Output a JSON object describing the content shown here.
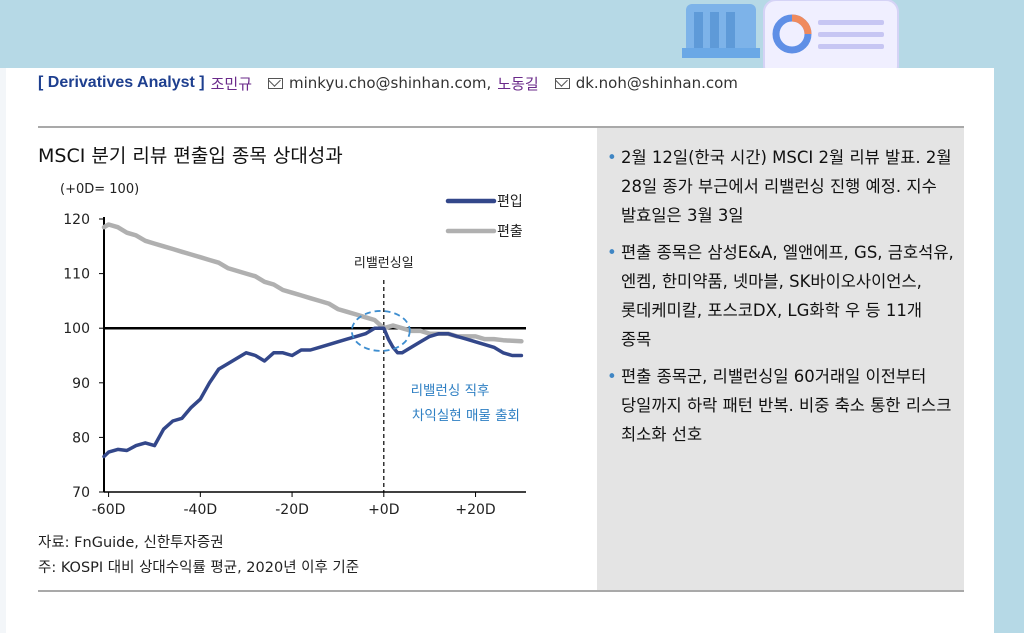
{
  "header": {
    "role": "[ Derivatives Analyst ]",
    "analysts": [
      {
        "name": "조민규",
        "email": "minkyu.cho@shinhan.com,"
      },
      {
        "name": "노동길",
        "email": "dk.noh@shinhan.com"
      }
    ]
  },
  "chart_title": "MSCI 분기 리뷰 편출입 종목 상대성과",
  "chart_data": {
    "type": "line",
    "title": "MSCI 분기 리뷰 편출입 종목 상대성과",
    "unit_label": "(+0D= 100)",
    "x_ticks": [
      "-60D",
      "-40D",
      "-20D",
      "+0D",
      "+20D"
    ],
    "x_tick_values": [
      -60,
      -40,
      -20,
      0,
      20
    ],
    "xlim": [
      -61,
      31
    ],
    "y_ticks": [
      70,
      80,
      90,
      100,
      110,
      120
    ],
    "ylim": [
      70,
      120
    ],
    "legend_position": "top-right",
    "series": [
      {
        "name": "편입",
        "color": "#33478a",
        "x": [
          -61,
          -60,
          -58,
          -56,
          -54,
          -52,
          -50,
          -48,
          -46,
          -44,
          -42,
          -40,
          -38,
          -36,
          -34,
          -32,
          -30,
          -28,
          -26,
          -24,
          -22,
          -20,
          -18,
          -16,
          -14,
          -12,
          -10,
          -8,
          -6,
          -4,
          -2,
          0,
          1,
          2,
          3,
          4,
          6,
          8,
          10,
          12,
          14,
          16,
          18,
          20,
          22,
          24,
          26,
          28,
          30
        ],
        "values": [
          76.5,
          77.3,
          77.8,
          77.6,
          78.5,
          79.0,
          78.5,
          81.5,
          83.0,
          83.5,
          85.5,
          87.0,
          90.0,
          92.5,
          93.5,
          94.5,
          95.5,
          95.0,
          94.0,
          95.5,
          95.5,
          95.0,
          96.0,
          96.0,
          96.5,
          97.0,
          97.5,
          98.0,
          98.5,
          99.0,
          100.0,
          100.0,
          98.0,
          96.5,
          95.5,
          95.5,
          96.5,
          97.5,
          98.5,
          99.0,
          99.0,
          98.5,
          98.0,
          97.5,
          97.0,
          96.5,
          95.5,
          95.0,
          95.0
        ]
      },
      {
        "name": "편출",
        "color": "#b0b0b0",
        "x": [
          -61,
          -60,
          -58,
          -56,
          -54,
          -52,
          -50,
          -48,
          -46,
          -44,
          -42,
          -40,
          -38,
          -36,
          -34,
          -32,
          -30,
          -28,
          -26,
          -24,
          -22,
          -20,
          -18,
          -16,
          -14,
          -12,
          -10,
          -8,
          -6,
          -4,
          -2,
          0,
          2,
          4,
          6,
          8,
          10,
          12,
          14,
          16,
          18,
          20,
          22,
          24,
          26,
          28,
          30
        ],
        "values": [
          118.5,
          119.0,
          118.5,
          117.5,
          117.0,
          116.0,
          115.5,
          115.0,
          114.5,
          114.0,
          113.5,
          113.0,
          112.5,
          112.0,
          111.0,
          110.5,
          110.0,
          109.5,
          108.5,
          108.0,
          107.0,
          106.5,
          106.0,
          105.5,
          105.0,
          104.5,
          103.5,
          103.0,
          102.5,
          102.0,
          101.5,
          100.0,
          100.5,
          100.0,
          99.5,
          99.5,
          99.0,
          99.0,
          99.0,
          98.5,
          98.5,
          98.5,
          98.0,
          98.0,
          97.8,
          97.7,
          97.6
        ]
      }
    ],
    "annotations": {
      "rebalance_label": "리밸런싱일",
      "rebalance_x": 0,
      "post_label_line1": "리밸런싱 직후",
      "post_label_line2": "차익실현 매물 출회"
    }
  },
  "footnotes": {
    "source": "자료: FnGuide, 신한투자증권",
    "note": "주: KOSPI 대비 상대수익률 평균, 2020년 이후 기준"
  },
  "bullets": [
    "2월 12일(한국 시간) MSCI 2월 리뷰 발표. 2월 28일 종가 부근에서 리밸런싱 진행 예정. 지수 발효일은 3월 3일",
    "편출 종목은 삼성E&A, 엘앤에프, GS, 금호석유, 엔켐, 한미약품, 넷마블, SK바이오사이언스, 롯데케미칼, 포스코DX, LG화학 우 등 11개 종목",
    "편출 종목군, 리밸런싱일 60거래일 이전부터 당일까지 하락 패턴 반복. 비중 축소 통한 리스크 최소화 선호"
  ]
}
